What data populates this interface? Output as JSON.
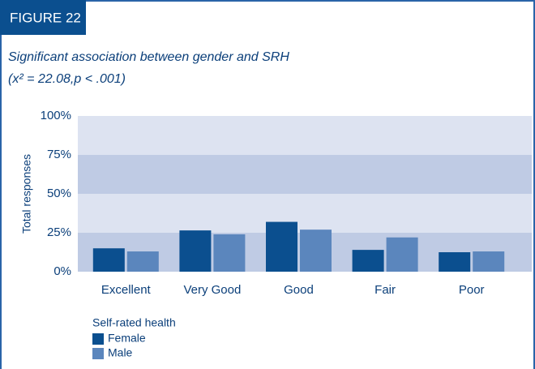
{
  "chart_data": {
    "type": "bar",
    "figure_label": "FIGURE 22",
    "title": "Significant association between gender and SRH",
    "subtitle": "(x² = 22.08,p < .001)",
    "y_label": "Total responses",
    "legend_title": "Self-rated health",
    "categories": [
      "Excellent",
      "Very Good",
      "Good",
      "Fair",
      "Poor"
    ],
    "series": [
      {
        "name": "Female",
        "color": "#0b4f8f",
        "values": [
          15,
          26.5,
          32,
          14,
          12.5
        ]
      },
      {
        "name": "Male",
        "color": "#5b86bd",
        "values": [
          13,
          24,
          27,
          22,
          13
        ]
      }
    ],
    "ylim": [
      0,
      100
    ],
    "yticks": [
      {
        "value": 0,
        "label": "0%"
      },
      {
        "value": 25,
        "label": "25%"
      },
      {
        "value": 50,
        "label": "50%"
      },
      {
        "value": 75,
        "label": "75%"
      },
      {
        "value": 100,
        "label": "100%"
      }
    ],
    "grid": true
  }
}
